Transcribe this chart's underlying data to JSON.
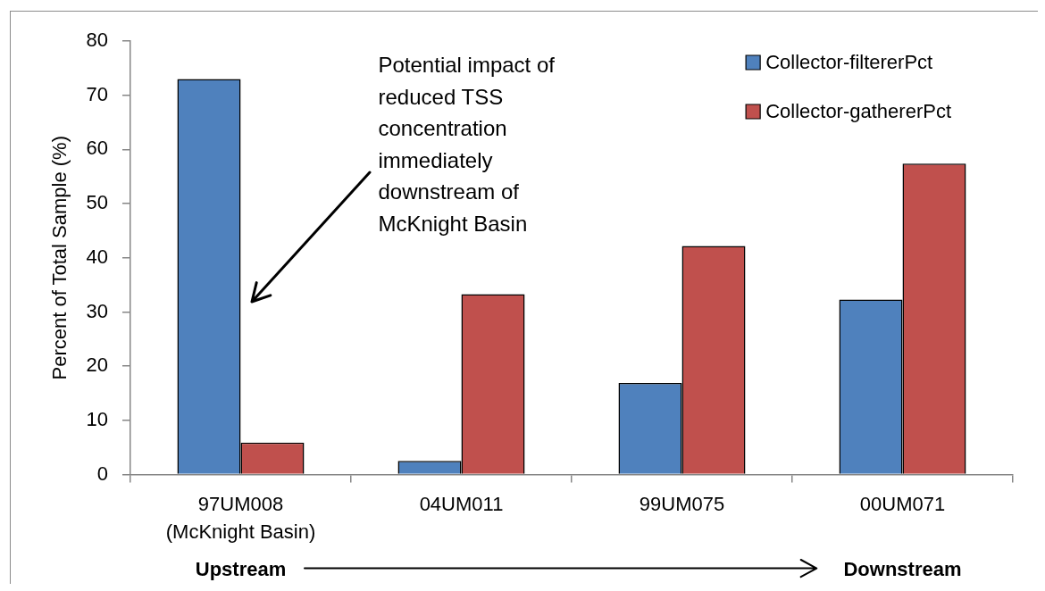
{
  "chart_data": {
    "type": "bar",
    "categories": [
      "97UM008\n(McKnight Basin)",
      "04UM011",
      "99UM075",
      "00UM071"
    ],
    "series": [
      {
        "name": "Collector-filtererPct",
        "color": "#4f81bd",
        "values": [
          73,
          2.5,
          16.9,
          32.3
        ]
      },
      {
        "name": "Collector-gathererPct",
        "color": "#c0504d",
        "values": [
          5.9,
          33.3,
          42.2,
          57.4
        ]
      }
    ],
    "ylabel": "Percent of Total Sample (%)",
    "ylim": [
      0,
      80
    ],
    "yticks": [
      0,
      10,
      20,
      30,
      40,
      50,
      60,
      70,
      80
    ],
    "grid": false,
    "legend": "top right",
    "annotations": [
      "Potential impact of reduced TSS concentration immediately downstream of McKnight Basin",
      "Upstream",
      "Downstream"
    ]
  }
}
